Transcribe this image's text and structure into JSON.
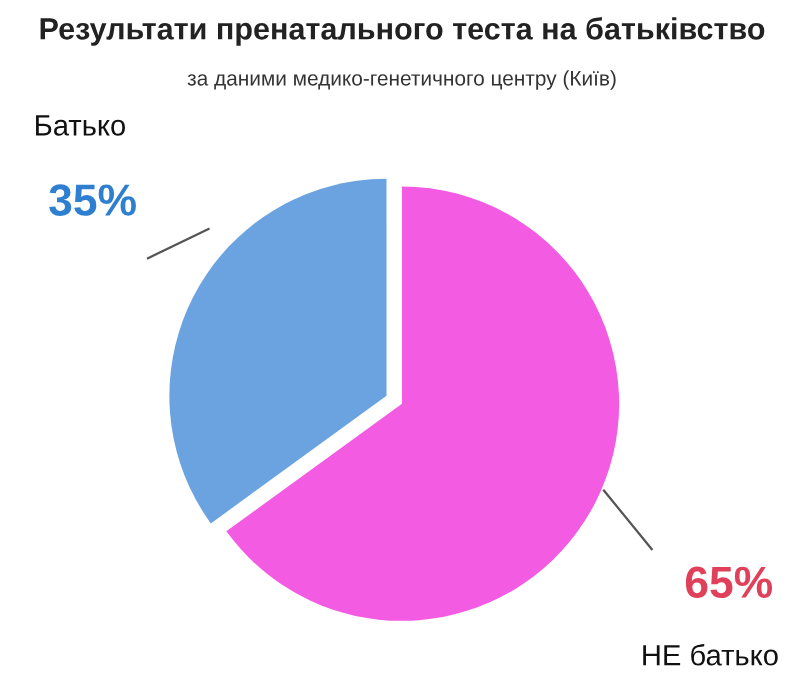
{
  "chart_data": {
    "type": "pie",
    "title": "Результати пренатального теста на батьківство",
    "subtitle": "за даними медико-генетичного центру (Київ)",
    "categories": [
      "Батько",
      "НЕ батько"
    ],
    "values": [
      35,
      65
    ],
    "colors": [
      "#6aa3e0",
      "#f25be2"
    ],
    "value_labels": [
      "35%",
      "65%"
    ],
    "legend": false
  }
}
